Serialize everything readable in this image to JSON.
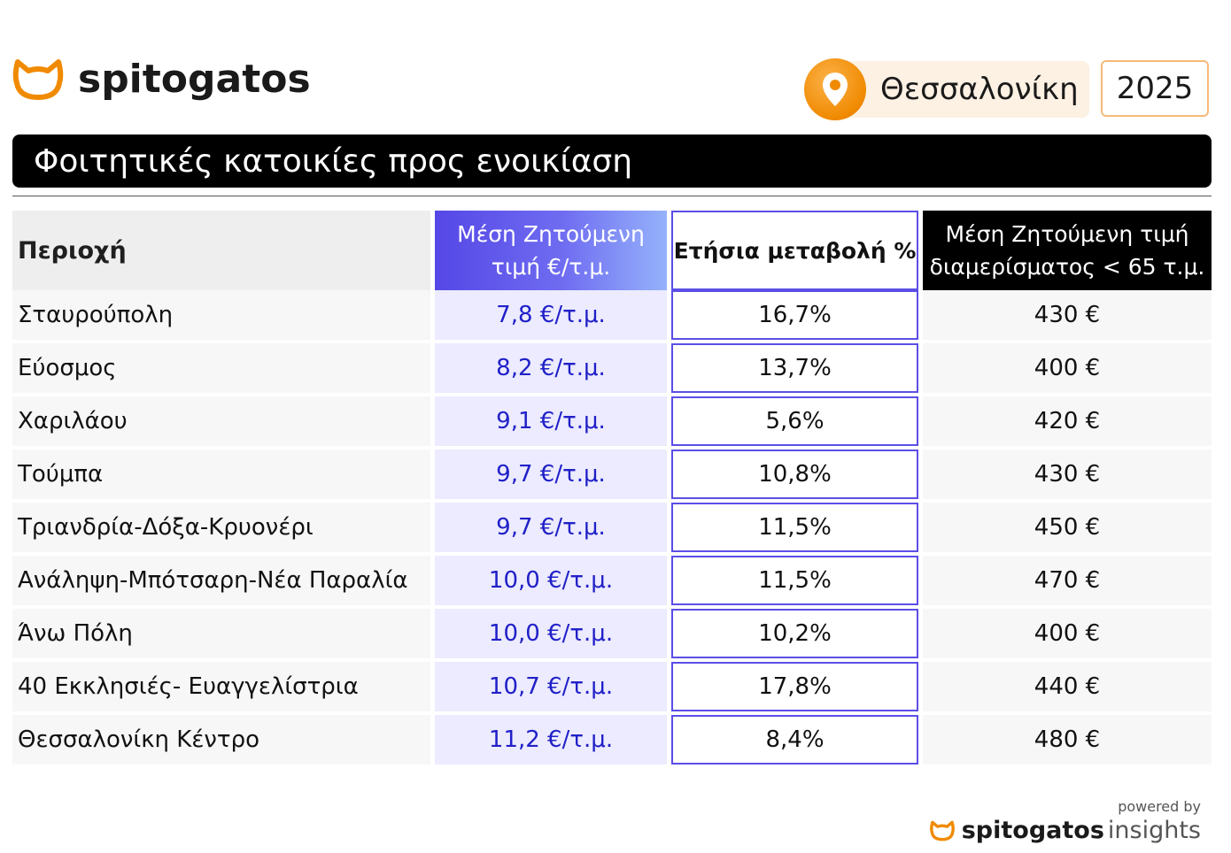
{
  "brand": {
    "name": "spitogatos"
  },
  "location": {
    "city": "Θεσσαλονίκη",
    "year": "2025"
  },
  "title": "Φοιτητικές κατοικίες προς ενοικίαση",
  "table": {
    "headers": {
      "area": "Περιοχή",
      "price_line1": "Μέση Ζητούμενη",
      "price_line2": "τιμή €/τ.μ.",
      "change": "Ετήσια μεταβολή %",
      "rent_line1": "Μέση Ζητούμενη τιμή",
      "rent_line2": "διαμερίσματος < 65 τ.μ."
    },
    "rows": [
      {
        "area": "Σταυρούπολη",
        "price": "7,8 €/τ.μ.",
        "change": "16,7%",
        "rent": "430 €"
      },
      {
        "area": "Εύοσμος",
        "price": "8,2 €/τ.μ.",
        "change": "13,7%",
        "rent": "400 €"
      },
      {
        "area": "Χαριλάου",
        "price": "9,1 €/τ.μ.",
        "change": "5,6%",
        "rent": "420 €"
      },
      {
        "area": "Τούμπα",
        "price": "9,7 €/τ.μ.",
        "change": "10,8%",
        "rent": "430 €"
      },
      {
        "area": "Τριανδρία-Δόξα-Κρυονέρι",
        "price": "9,7 €/τ.μ.",
        "change": "11,5%",
        "rent": "450 €"
      },
      {
        "area": "Ανάληψη-Μπότσαρη-Νέα Παραλία",
        "price": "10,0 €/τ.μ.",
        "change": "11,5%",
        "rent": "470 €"
      },
      {
        "area": "Άνω Πόλη",
        "price": "10,0 €/τ.μ.",
        "change": "10,2%",
        "rent": "400 €"
      },
      {
        "area": "40 Εκκλησιές- Ευαγγελίστρια",
        "price": "10,7 €/τ.μ.",
        "change": "17,8%",
        "rent": "440 €"
      },
      {
        "area": "Θεσσαλονίκη Κέντρο",
        "price": "11,2 €/τ.μ.",
        "change": "8,4%",
        "rent": "480 €"
      }
    ]
  },
  "footer": {
    "powered_by": "powered by",
    "brand": "spitogatos",
    "suffix": "insights"
  },
  "icons": {
    "logo": "cat-head-icon",
    "location": "map-pin-icon"
  },
  "colors": {
    "accent_orange": "#f08a00",
    "accent_blue": "#5547e6",
    "price_text": "#2020c8"
  }
}
